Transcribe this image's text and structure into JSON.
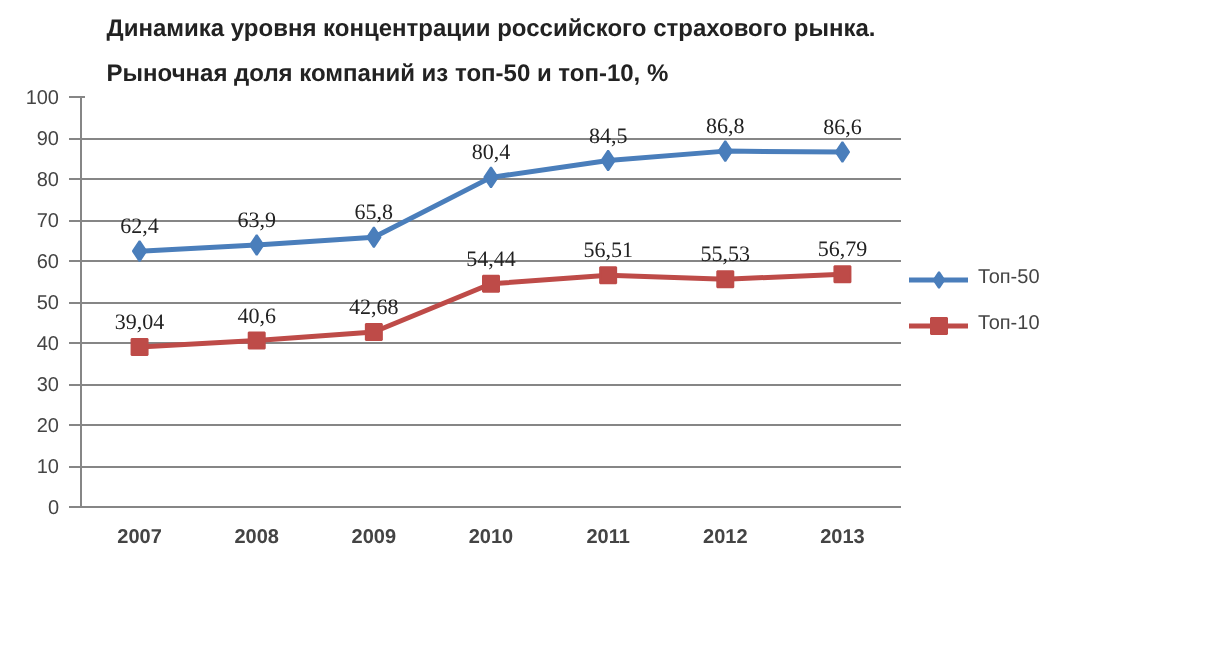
{
  "chart_data": {
    "type": "line",
    "title": "Динамика уровня концентрации российского страхового рынка.\nРыночная доля компаний из топ-50 и топ-10, %",
    "categories": [
      "2007",
      "2008",
      "2009",
      "2010",
      "2011",
      "2012",
      "2013"
    ],
    "series": [
      {
        "name": "Топ-50",
        "color": "#4a7ebb",
        "marker": "diamond",
        "values": [
          62.4,
          63.9,
          65.8,
          80.4,
          84.5,
          86.8,
          86.6
        ],
        "value_labels": [
          "62,4",
          "63,9",
          "65,8",
          "80,4",
          "84,5",
          "86,8",
          "86,6"
        ]
      },
      {
        "name": "Топ-10",
        "color": "#be4b48",
        "marker": "square",
        "values": [
          39.04,
          40.6,
          42.68,
          54.44,
          56.51,
          55.53,
          56.79
        ],
        "value_labels": [
          "39,04",
          "40,6",
          "42,68",
          "54,44",
          "56,51",
          "55,53",
          "56,79"
        ]
      }
    ],
    "ylim": [
      0,
      100
    ],
    "yticks": [
      0,
      10,
      20,
      30,
      40,
      50,
      60,
      70,
      80,
      90,
      100
    ],
    "grid": "y",
    "legend": "right",
    "line_style": "solid"
  }
}
